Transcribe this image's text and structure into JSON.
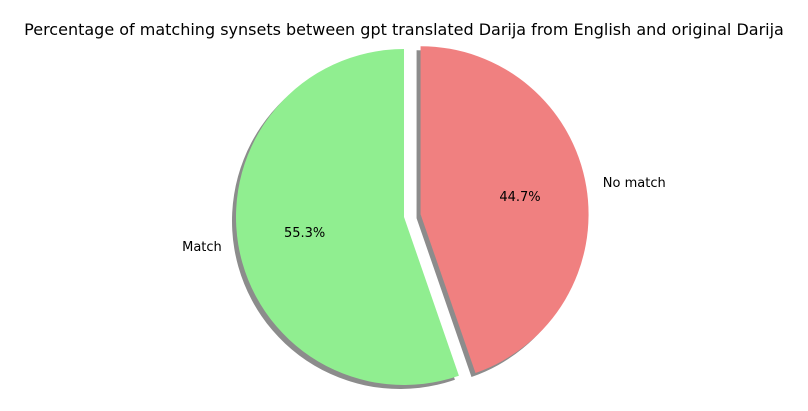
{
  "chart_data": {
    "type": "pie",
    "title": "Percentage of matching synsets between gpt translated Darija from English and original Darija",
    "categories": [
      "Match",
      "No match"
    ],
    "values": [
      55.3,
      44.7
    ],
    "percent_labels": [
      "55.3%",
      "44.7%"
    ],
    "colors": [
      "#90ee90",
      "#f08080"
    ],
    "exploded": [
      "No match"
    ],
    "shadow": true,
    "start_angle_deg": 90,
    "direction": "counterclockwise",
    "legend": "none"
  }
}
